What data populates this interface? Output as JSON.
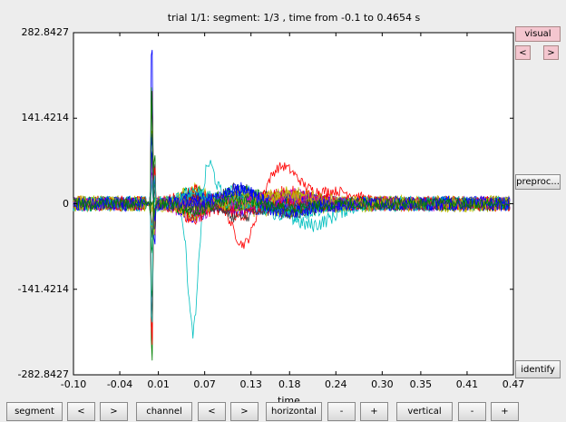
{
  "figure": {
    "title": "trial 1/1: segment: 1/3 , time from -0.1 to 0.4654 s",
    "xlabel": "time"
  },
  "side_buttons": {
    "visual": "visual",
    "prev": "<",
    "next": ">",
    "preproc": "preproc...",
    "identify": "identify"
  },
  "bottom_buttons": {
    "segment": "segment",
    "segment_prev": "<",
    "segment_next": ">",
    "channel": "channel",
    "channel_prev": "<",
    "channel_next": ">",
    "horizontal": "horizontal",
    "horizontal_minus": "-",
    "horizontal_plus": "+",
    "vertical": "vertical",
    "vertical_minus": "-",
    "vertical_plus": "+"
  },
  "colors": {
    "pink_button": "#f4c6cf",
    "series": [
      "#0000ff",
      "#008000",
      "#ff0000",
      "#00bfbf",
      "#bf00bf",
      "#bfbf00",
      "#404040"
    ]
  },
  "chart_data": {
    "type": "line",
    "title": "trial 1/1: segment: 1/3 , time from -0.1 to 0.4654 s",
    "xlabel": "time",
    "ylabel": "",
    "xlim": [
      -0.1,
      0.47
    ],
    "ylim": [
      -282.8427,
      282.8427
    ],
    "xticks": [
      "-0.10",
      "-0.04",
      "0.01",
      "0.07",
      "0.13",
      "0.18",
      "0.24",
      "0.30",
      "0.35",
      "0.41",
      "0.47"
    ],
    "yticks": [
      "282.8427",
      "141.4214",
      "0",
      "-141.4214",
      "-282.8427"
    ],
    "grid": false,
    "series_count": 30,
    "time_range_s": [
      -0.1,
      0.4654
    ],
    "notes_visible_features": {
      "stim_artifact_time": 0.0,
      "cyan_trough": {
        "x": 0.055,
        "y": -240
      },
      "red_trough": {
        "x": 0.12,
        "y": -100
      },
      "red_peak": {
        "x": 0.17,
        "y": 55
      },
      "cyan_peak": {
        "x": 0.07,
        "y": 70
      }
    }
  }
}
